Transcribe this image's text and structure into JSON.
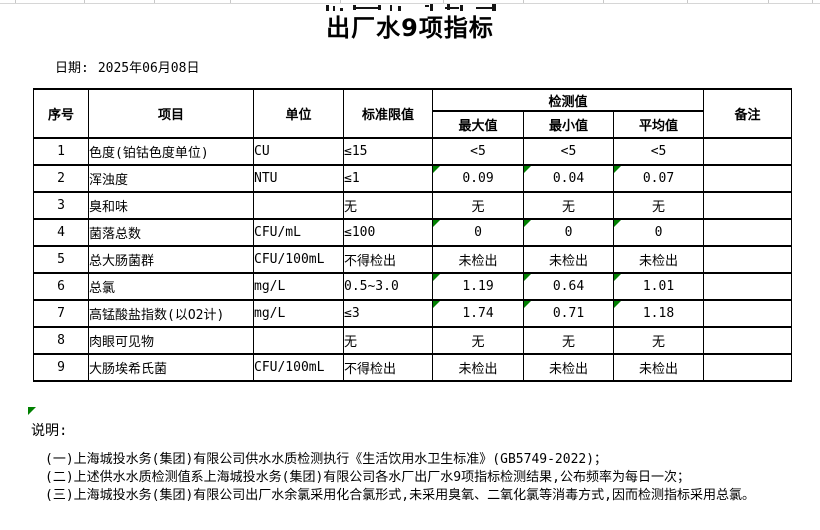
{
  "page": {
    "title": "出厂水9项指标"
  },
  "date": {
    "label": "日期:",
    "value": "2025年06月08日"
  },
  "table": {
    "headers": {
      "no": "序号",
      "item": "项目",
      "unit": "单位",
      "limit": "标准限值",
      "detection_group": "检测值",
      "max": "最大值",
      "min": "最小值",
      "avg": "平均值",
      "remark": "备注"
    },
    "rows": [
      {
        "no": "1",
        "item": "色度(铂钴色度单位)",
        "unit": "CU",
        "limit": "≤15",
        "max": "<5",
        "min": "<5",
        "avg": "<5",
        "remark": "",
        "flagged": false
      },
      {
        "no": "2",
        "item": "浑浊度",
        "unit": "NTU",
        "limit": "≤1",
        "max": "0.09",
        "min": "0.04",
        "avg": "0.07",
        "remark": "",
        "flagged": true
      },
      {
        "no": "3",
        "item": "臭和味",
        "unit": "",
        "limit": "无",
        "max": "无",
        "min": "无",
        "avg": "无",
        "remark": "",
        "flagged": false
      },
      {
        "no": "4",
        "item": "菌落总数",
        "unit": "CFU/mL",
        "limit": "≤100",
        "max": "0",
        "min": "0",
        "avg": "0",
        "remark": "",
        "flagged": true
      },
      {
        "no": "5",
        "item": "总大肠菌群",
        "unit": "CFU/100mL",
        "limit": "不得检出",
        "max": "未检出",
        "min": "未检出",
        "avg": "未检出",
        "remark": "",
        "flagged": false
      },
      {
        "no": "6",
        "item": "总氯",
        "unit": "mg/L",
        "limit": "0.5~3.0",
        "max": "1.19",
        "min": "0.64",
        "avg": "1.01",
        "remark": "",
        "flagged": true
      },
      {
        "no": "7",
        "item": "高锰酸盐指数(以O2计)",
        "unit": "mg/L",
        "limit": "≤3",
        "max": "1.74",
        "min": "0.71",
        "avg": "1.18",
        "remark": "",
        "flagged": true
      },
      {
        "no": "8",
        "item": "肉眼可见物",
        "unit": "",
        "limit": "无",
        "max": "无",
        "min": "无",
        "avg": "无",
        "remark": "",
        "flagged": false
      },
      {
        "no": "9",
        "item": "大肠埃希氏菌",
        "unit": "CFU/100mL",
        "limit": "不得检出",
        "max": "未检出",
        "min": "未检出",
        "avg": "未检出",
        "remark": "",
        "flagged": false
      }
    ]
  },
  "notes": {
    "label": "说明:",
    "items": [
      "(一)上海城投水务(集团)有限公司供水水质检测执行《生活饮用水卫生标准》(GB5749-2022)；",
      "(二)上述供水水质检测值系上海城投水务(集团)有限公司各水厂出厂水9项指标检测结果,公布频率为每日一次；",
      "(三)上海城投水务(集团)有限公司出厂水余氯采用化合氯形式,未采用臭氧、二氧化氯等消毒方式,因而检测指标采用总氯。"
    ]
  },
  "colors": {
    "flag_green": "#008000",
    "border": "#000000",
    "top_gridline": "#c8c8c8"
  }
}
